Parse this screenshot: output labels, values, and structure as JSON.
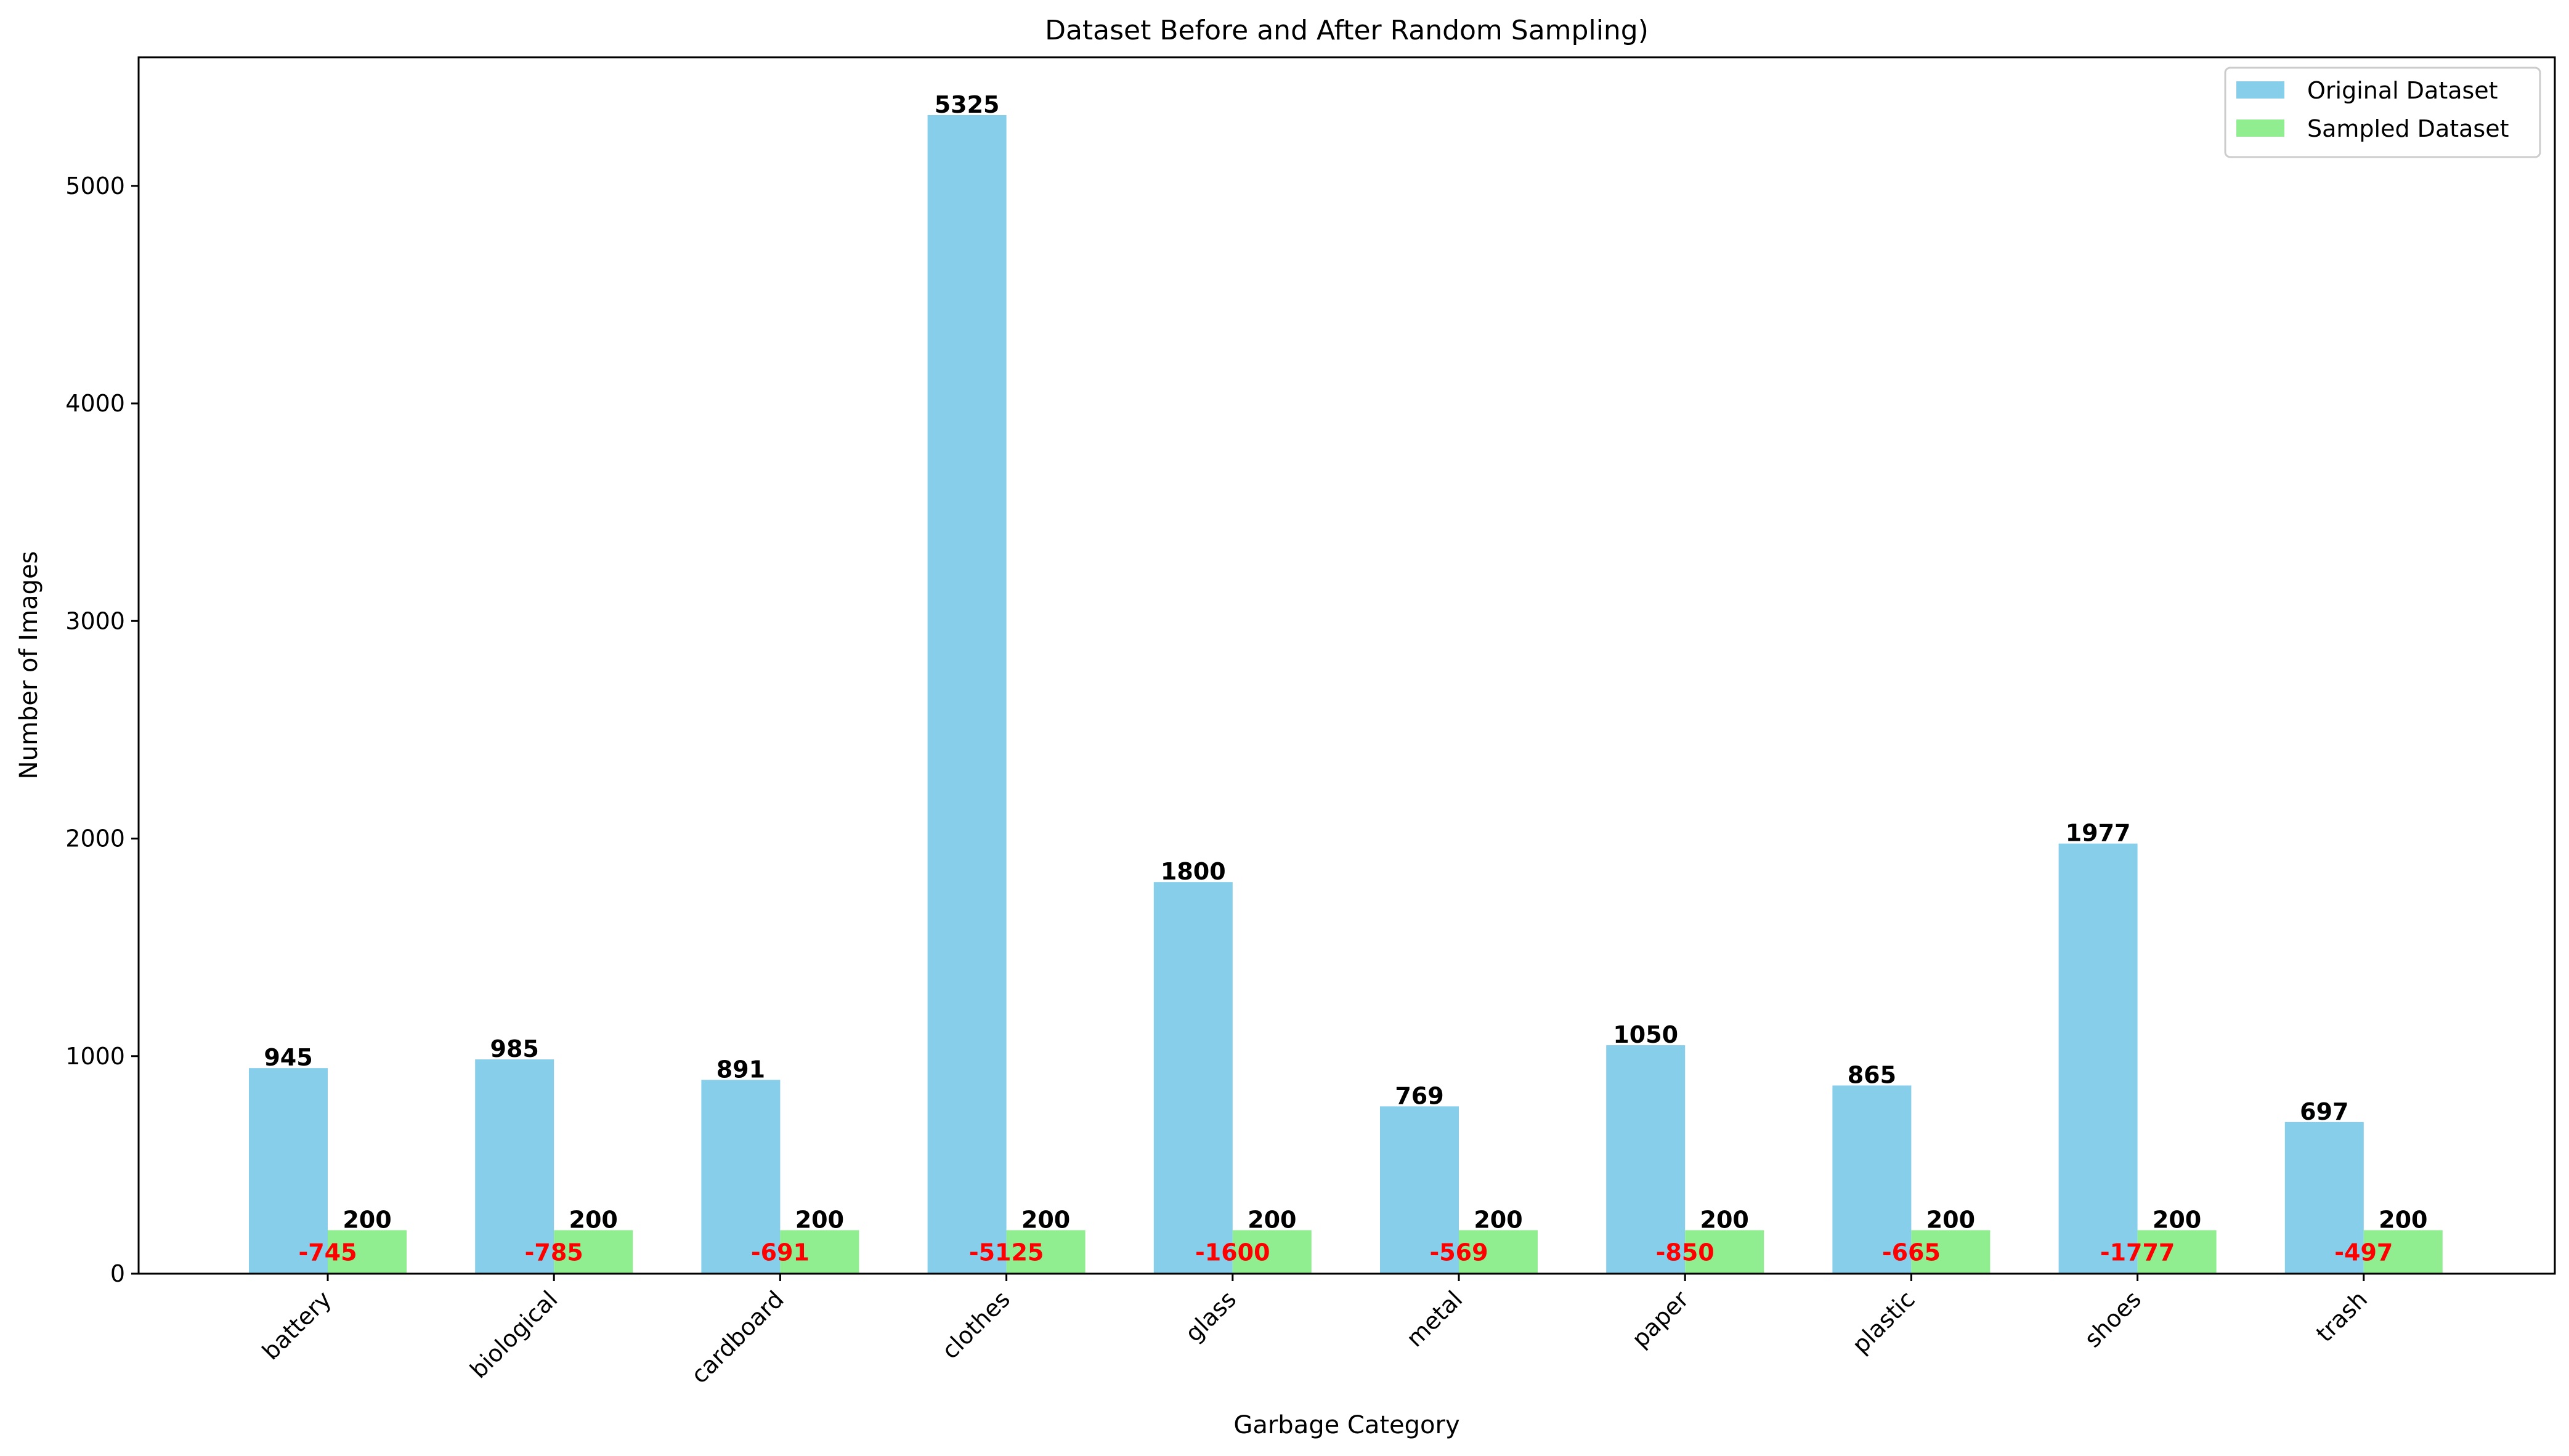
{
  "chart_data": {
    "type": "bar",
    "title": "Dataset Before and After Random Sampling)",
    "xlabel": "Garbage Category",
    "ylabel": "Number of Images",
    "ylim": [
      0,
      5591
    ],
    "yticks": [
      0,
      1000,
      2000,
      3000,
      4000,
      5000
    ],
    "ytick_labels": [
      "0",
      "1000",
      "2000",
      "3000",
      "4000",
      "5000"
    ],
    "categories": [
      "battery",
      "biological",
      "cardboard",
      "clothes",
      "glass",
      "metal",
      "paper",
      "plastic",
      "shoes",
      "trash"
    ],
    "series": [
      {
        "name": "Original Dataset",
        "color": "#87ceeb",
        "values": [
          945,
          985,
          891,
          5325,
          1800,
          769,
          1050,
          865,
          1977,
          697
        ]
      },
      {
        "name": "Sampled Dataset",
        "color": "#90ee90",
        "values": [
          200,
          200,
          200,
          200,
          200,
          200,
          200,
          200,
          200,
          200
        ]
      }
    ],
    "difference_labels": [
      "-745",
      "-785",
      "-691",
      "-5125",
      "-1600",
      "-569",
      "-850",
      "-665",
      "-1777",
      "-497"
    ],
    "difference_color": "#ff0000",
    "legend_position": "upper right",
    "grid": false
  }
}
